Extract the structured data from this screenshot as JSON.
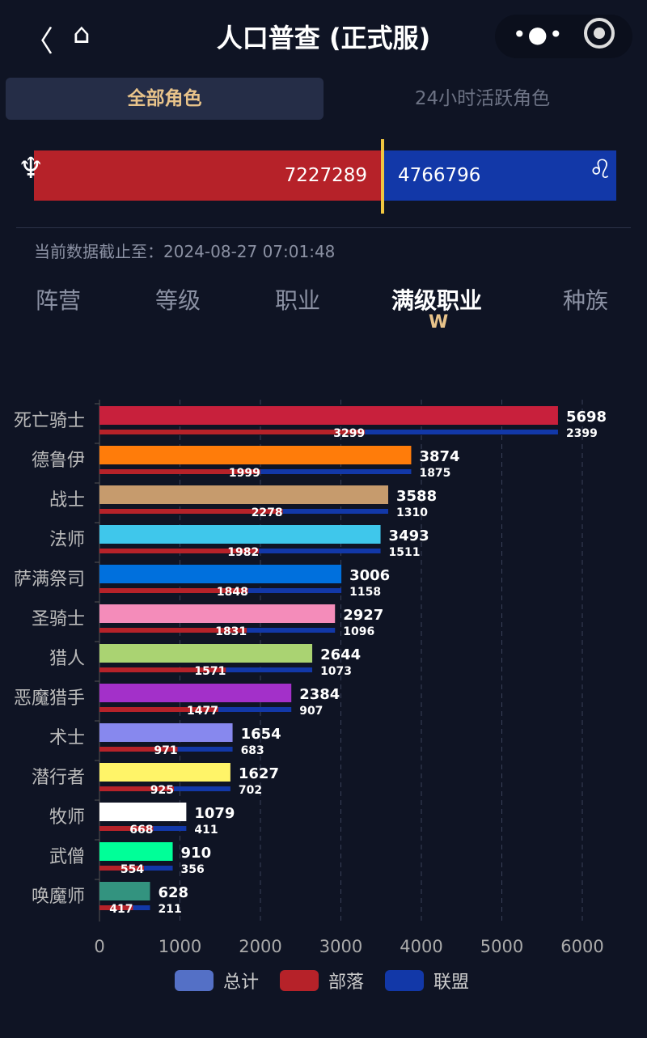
{
  "header": {
    "title": "人口普查 (正式服)",
    "back_icon": "chevron-left-icon",
    "home_icon": "home-icon",
    "more_icon": "more-dots-icon",
    "target_icon": "target-icon"
  },
  "segments": [
    {
      "label": "全部角色",
      "active": true
    },
    {
      "label": "24小时活跃角色",
      "active": false
    }
  ],
  "faction_bar": {
    "horde": "7227289",
    "alliance": "4766796",
    "horde_color": "#b62229",
    "alliance_color": "#1238a8"
  },
  "update_text": "当前数据截止至：2024-08-27 07:01:48",
  "tabs": [
    {
      "label": "阵营"
    },
    {
      "label": "等级"
    },
    {
      "label": "职业"
    },
    {
      "label": "满级职业",
      "active": true
    },
    {
      "label": "种族"
    }
  ],
  "chart_data": {
    "type": "bar",
    "orientation": "horizontal",
    "categories": [
      "死亡骑士",
      "德鲁伊",
      "战士",
      "法师",
      "萨满祭司",
      "圣骑士",
      "猎人",
      "恶魔猎手",
      "术士",
      "潜行者",
      "牧师",
      "武僧",
      "唤魔师"
    ],
    "colors": [
      "#c8203c",
      "#ff7c0a",
      "#c69b6d",
      "#3fc7eb",
      "#0070dd",
      "#f48cba",
      "#aad372",
      "#a330c9",
      "#8788ee",
      "#fff468",
      "#ffffff",
      "#00ff98",
      "#33937f"
    ],
    "series": [
      {
        "name": "总计",
        "color": "#5470c6",
        "values": [
          5698,
          3874,
          3588,
          3493,
          3006,
          2927,
          2644,
          2384,
          1654,
          1627,
          1079,
          910,
          628
        ]
      },
      {
        "name": "部落",
        "color": "#b62229",
        "values": [
          3299,
          1999,
          2278,
          1982,
          1848,
          1831,
          1571,
          1477,
          971,
          925,
          668,
          554,
          417
        ]
      },
      {
        "name": "联盟",
        "color": "#1238a8",
        "values": [
          2399,
          1875,
          1310,
          1511,
          1158,
          1096,
          1073,
          907,
          683,
          702,
          411,
          356,
          211
        ]
      }
    ],
    "xlim": [
      0,
      6000
    ],
    "xticks": [
      "0",
      "1000",
      "2000",
      "3000",
      "4000",
      "5000",
      "6000"
    ],
    "grid": "vertical dashed",
    "legend": "bottom"
  }
}
